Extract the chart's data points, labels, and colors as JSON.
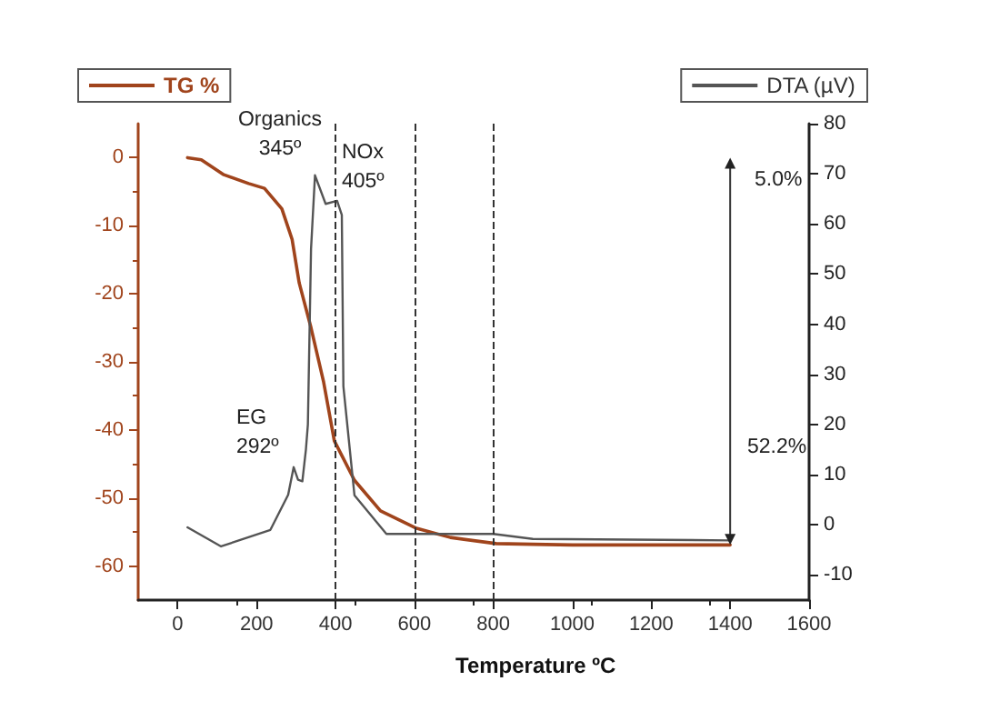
{
  "chart_data": {
    "type": "line",
    "xlabel": "Temperature ºC",
    "xlim": [
      -100,
      1600
    ],
    "xticks": [
      0,
      200,
      400,
      600,
      800,
      1000,
      1200,
      1400,
      1600
    ],
    "ylim": [
      -65,
      5
    ],
    "yticks": [
      -60,
      -50,
      -40,
      -30,
      -20,
      -10,
      0
    ],
    "y2lim": [
      -15,
      80
    ],
    "y2ticks": [
      -10,
      0,
      10,
      20,
      30,
      40,
      50,
      60,
      70,
      80
    ],
    "grid": false,
    "legend": "top",
    "marker": "none",
    "line_style": "solid",
    "series": [
      {
        "name": "TG %",
        "color": "#a0441c",
        "x": [
          25,
          60,
          117,
          180,
          220,
          264,
          290,
          308,
          338,
          370,
          397,
          448,
          514,
          603,
          691,
          807,
          900,
          1000,
          1200,
          1400
        ],
        "values": [
          0,
          -0.3,
          -2.5,
          -3.8,
          -4.5,
          -7.5,
          -12,
          -18.4,
          -25,
          -33,
          -41.6,
          -47.4,
          -51.9,
          -54.4,
          -55.8,
          -56.7,
          -56.8,
          -56.9,
          -56.9,
          -56.9
        ]
      },
      {
        "name": "DTA (µV)",
        "color": "#555555",
        "axis": "y2",
        "x": [
          25,
          110,
          235,
          280,
          294,
          305,
          316,
          325,
          330,
          338,
          348,
          375,
          404,
          416,
          420,
          448,
          529,
          800,
          900,
          1400
        ],
        "values": [
          -0.5,
          -4.3,
          -1,
          6,
          11.5,
          9,
          8.7,
          15,
          20,
          55,
          69.7,
          64,
          64.6,
          61.8,
          27.6,
          5.9,
          -1.8,
          -1.8,
          -2.8,
          -3.1
        ]
      }
    ],
    "ref_lines": [
      {
        "axis": "x",
        "value": 400,
        "line_style": "dashed"
      },
      {
        "axis": "x",
        "value": 600,
        "line_style": "dashed"
      },
      {
        "axis": "x",
        "value": 800,
        "line_style": "dashed"
      }
    ],
    "annotations": [
      "Organics\n345º",
      "NOx\n405º",
      "EG\n292º",
      "5.0%",
      "52.2%"
    ]
  }
}
